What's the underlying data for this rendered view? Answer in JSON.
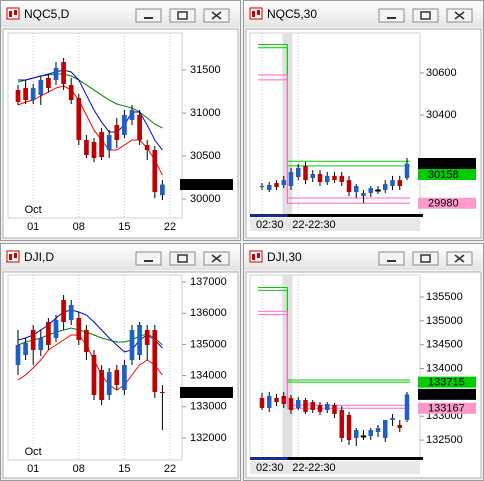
{
  "panels": [
    {
      "title": "NQC5,D",
      "ylim": [
        29780,
        31930
      ],
      "yticks": [
        30000,
        30500,
        31000,
        31500
      ],
      "candles": [
        [
          31267,
          31326,
          31093,
          31128
        ],
        [
          31291,
          31384,
          31105,
          31151
        ],
        [
          31151,
          31337,
          31105,
          31291
        ],
        [
          31209,
          31430,
          31093,
          31384
        ],
        [
          31407,
          31453,
          31244,
          31291
        ],
        [
          31384,
          31593,
          31326,
          31523
        ],
        [
          31593,
          31640,
          31267,
          31337
        ],
        [
          31326,
          31407,
          31105,
          31151
        ],
        [
          31174,
          31221,
          30628,
          30686
        ],
        [
          30686,
          30744,
          30477,
          30512
        ],
        [
          30663,
          30709,
          30430,
          30477
        ],
        [
          30779,
          30825,
          30453,
          30488
        ],
        [
          30570,
          30802,
          30477,
          30744
        ],
        [
          30860,
          30942,
          30593,
          30686
        ],
        [
          30744,
          31035,
          30709,
          30977
        ],
        [
          30919,
          31093,
          30860,
          31035
        ],
        [
          30977,
          31035,
          30628,
          30686
        ],
        [
          30628,
          30686,
          30453,
          30570
        ],
        [
          30570,
          30616,
          30011,
          30081
        ],
        [
          30046,
          30221,
          29988,
          30169
        ]
      ],
      "lines": [
        {
          "color": "#008000",
          "values": [
            31360,
            31384,
            31407,
            31430,
            31442,
            31453,
            31453,
            31430,
            31384,
            31326,
            31267,
            31209,
            31151,
            31105,
            31081,
            31058,
            31012,
            30942,
            30872,
            30826
          ]
        },
        {
          "color": "#0000cc",
          "values": [
            31384,
            31384,
            31407,
            31430,
            31453,
            31477,
            31500,
            31477,
            31384,
            31209,
            31035,
            30895,
            30779,
            30779,
            30860,
            31012,
            31012,
            30860,
            30686,
            30570
          ]
        },
        {
          "color": "#ff0000",
          "values": [
            31093,
            31128,
            31151,
            31198,
            31244,
            31291,
            31314,
            31267,
            31151,
            30977,
            30802,
            30686,
            30570,
            30570,
            30628,
            30686,
            30686,
            30593,
            30453,
            30279
          ]
        }
      ],
      "price_labels": [
        {
          "value": 30169,
          "color": "#000000",
          "text_color": "#ffffff"
        }
      ],
      "x_labels": [
        {
          "index": 2,
          "label": "01"
        },
        {
          "index": 8,
          "label": "08"
        },
        {
          "index": 14,
          "label": "15"
        },
        {
          "index": 20,
          "label": "22"
        }
      ],
      "period_label": {
        "index": 2,
        "label": "Oct"
      }
    },
    {
      "title": "NQC5,30",
      "ylim": [
        29924,
        30790
      ],
      "yticks": [
        30400,
        30600
      ],
      "candles": [
        [
          30057,
          30076,
          30043,
          30062
        ],
        [
          30043,
          30081,
          30033,
          30067
        ],
        [
          30076,
          30090,
          30043,
          30057
        ],
        [
          30067,
          30110,
          30052,
          30090
        ],
        [
          30062,
          30148,
          30043,
          30129
        ],
        [
          30105,
          30167,
          30090,
          30148
        ],
        [
          30157,
          30176,
          30071,
          30090
        ],
        [
          30100,
          30138,
          30081,
          30119
        ],
        [
          30119,
          30138,
          30062,
          30081
        ],
        [
          30081,
          30129,
          30067,
          30110
        ],
        [
          30110,
          30129,
          30076,
          30090
        ],
        [
          30110,
          30129,
          30062,
          30081
        ],
        [
          30090,
          30110,
          30014,
          30033
        ],
        [
          30033,
          30071,
          30005,
          30062
        ],
        [
          30014,
          30043,
          29981,
          30029
        ],
        [
          30029,
          30062,
          30010,
          30052
        ],
        [
          30043,
          30062,
          30024,
          30043
        ],
        [
          30043,
          30090,
          30029,
          30071
        ],
        [
          30062,
          30110,
          30043,
          30090
        ],
        [
          30090,
          30110,
          30043,
          30062
        ],
        [
          30100,
          30195,
          30090,
          30169
        ]
      ],
      "levels": [
        {
          "color": "#00cc00",
          "values": [
            30735,
            30180
          ]
        },
        {
          "color": "#00cc00",
          "values": [
            30720,
            30158
          ]
        },
        {
          "color": "#ff66cc",
          "values": [
            30590,
            30005
          ]
        },
        {
          "color": "#ff66cc",
          "values": [
            30567,
            29980
          ]
        }
      ],
      "price_labels": [
        {
          "value": 30169,
          "color": "#000000",
          "text_color": "#ffffff"
        },
        {
          "value": 30158,
          "color": "#00cc00",
          "text_color": "#000000"
        },
        {
          "value": 29980,
          "color": "#ff99cc",
          "text_color": "#000000"
        }
      ],
      "x_labels": [
        {
          "index": 0,
          "label": "02:30"
        },
        {
          "index": 5,
          "label": "22-22:30"
        }
      ]
    },
    {
      "title": "DJI,D",
      "ylim": [
        131295,
        137224
      ],
      "yticks": [
        132000,
        133000,
        134000,
        135000,
        136000,
        137000
      ],
      "candles": [
        [
          134340,
          135462,
          134019,
          134981
        ],
        [
          134660,
          135206,
          134500,
          135045
        ],
        [
          135462,
          135622,
          134340,
          134821
        ],
        [
          134821,
          135462,
          134628,
          135206
        ],
        [
          135718,
          135846,
          134821,
          134981
        ],
        [
          135206,
          135942,
          135077,
          135782
        ],
        [
          136423,
          136583,
          135462,
          135718
        ],
        [
          135782,
          136423,
          135622,
          136263
        ],
        [
          135846,
          136039,
          134981,
          135141
        ],
        [
          135462,
          135622,
          134500,
          134757
        ],
        [
          134660,
          134821,
          133218,
          133378
        ],
        [
          134180,
          134340,
          133058,
          133218
        ],
        [
          133378,
          134244,
          133218,
          134116
        ],
        [
          134180,
          134340,
          133539,
          133699
        ],
        [
          133539,
          134500,
          133378,
          134340
        ],
        [
          134500,
          135622,
          134340,
          135462
        ],
        [
          134660,
          135718,
          134500,
          135622
        ],
        [
          135462,
          135622,
          134500,
          134981
        ],
        [
          135462,
          135622,
          133282,
          133474
        ],
        [
          133474,
          133699,
          132257,
          133459
        ]
      ],
      "lines": [
        {
          "color": "#0000cc",
          "values": [
            135141,
            135206,
            135301,
            135462,
            135622,
            135846,
            136039,
            136103,
            136039,
            135942,
            135718,
            135462,
            135206,
            134981,
            134757,
            134821,
            135141,
            135301,
            135141,
            134885
          ]
        },
        {
          "color": "#008000",
          "values": [
            134981,
            135077,
            135141,
            135206,
            135301,
            135398,
            135462,
            135526,
            135462,
            135398,
            135301,
            135206,
            135141,
            135077,
            135077,
            135141,
            135269,
            135334,
            135206,
            134981
          ]
        },
        {
          "color": "#ff0000",
          "values": [
            133859,
            134019,
            134244,
            134500,
            134821,
            134981,
            135141,
            135301,
            135301,
            134981,
            134500,
            134019,
            133699,
            133539,
            133699,
            134019,
            134340,
            134500,
            134340,
            134019
          ]
        }
      ],
      "price_labels": [
        {
          "value": 133459,
          "color": "#000000",
          "text_color": "#ffffff"
        }
      ],
      "x_labels": [
        {
          "index": 2,
          "label": "01"
        },
        {
          "index": 8,
          "label": "08"
        },
        {
          "index": 14,
          "label": "15"
        },
        {
          "index": 20,
          "label": "22"
        }
      ],
      "period_label": {
        "index": 2,
        "label": "Oct"
      }
    },
    {
      "title": "DJI,30",
      "ylim": [
        132125,
        135961
      ],
      "yticks": [
        132500,
        133000,
        134000,
        134500,
        135000,
        135500
      ],
      "candles": [
        [
          133383,
          133488,
          133131,
          133173
        ],
        [
          133173,
          133509,
          133090,
          133425
        ],
        [
          133383,
          133467,
          133215,
          133299
        ],
        [
          133425,
          133509,
          133173,
          133257
        ],
        [
          133383,
          133446,
          133048,
          133131
        ],
        [
          133173,
          133404,
          133131,
          133341
        ],
        [
          133341,
          133383,
          133048,
          133090
        ],
        [
          133299,
          133341,
          133069,
          133131
        ],
        [
          133236,
          133299,
          133027,
          133090
        ],
        [
          133131,
          133299,
          133069,
          133257
        ],
        [
          133236,
          133278,
          132964,
          133048
        ],
        [
          133131,
          133215,
          132461,
          132545
        ],
        [
          133027,
          133090,
          132398,
          132503
        ],
        [
          132545,
          132754,
          132377,
          132712
        ],
        [
          132587,
          132712,
          132503,
          132587
        ],
        [
          132587,
          132754,
          132503,
          132712
        ],
        [
          132670,
          132817,
          132566,
          132754
        ],
        [
          132545,
          132922,
          132461,
          132922
        ],
        [
          132922,
          133048,
          132796,
          132964
        ],
        [
          132817,
          132922,
          132670,
          132754
        ],
        [
          132922,
          133509,
          132880,
          133459
        ]
      ],
      "levels": [
        {
          "color": "#00cc00",
          "values": [
            135700,
            133760
          ]
        },
        {
          "color": "#00cc00",
          "values": [
            135640,
            133715
          ]
        },
        {
          "color": "#ff66cc",
          "values": [
            135200,
            133230
          ]
        },
        {
          "color": "#ff66cc",
          "values": [
            135130,
            133167
          ]
        }
      ],
      "price_labels": [
        {
          "value": 133715,
          "color": "#00cc00",
          "text_color": "#000000"
        },
        {
          "value": 133459,
          "color": "#000000",
          "text_color": "#ffffff"
        },
        {
          "value": 133167,
          "color": "#ff99cc",
          "text_color": "#000000"
        }
      ],
      "x_labels": [
        {
          "index": 0,
          "label": "02:30"
        },
        {
          "index": 5,
          "label": "22-22:30"
        }
      ]
    }
  ]
}
